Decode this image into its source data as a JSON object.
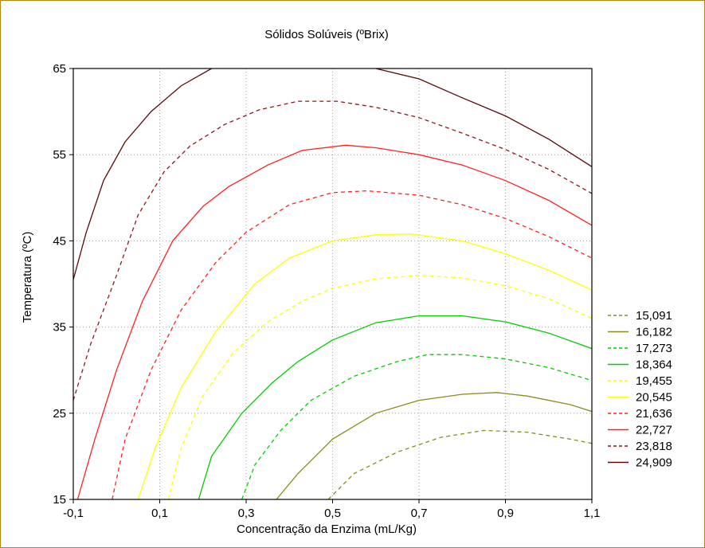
{
  "chart_data": {
    "type": "contour",
    "title": "Sólidos Solúveis (ºBrix)",
    "xlabel": "Concentração da Enzima (mL/Kg)",
    "ylabel": "Temperatura (ºC)",
    "xlim": [
      -0.1,
      1.1
    ],
    "ylim": [
      15,
      65
    ],
    "x_ticks": [
      -0.1,
      0.1,
      0.3,
      0.5,
      0.7,
      0.9,
      1.1
    ],
    "x_tick_labels": [
      "-0,1",
      "0,1",
      "0,3",
      "0,5",
      "0,7",
      "0,9",
      "1,1"
    ],
    "y_ticks": [
      15,
      25,
      35,
      45,
      55,
      65
    ],
    "y_tick_labels": [
      "15",
      "25",
      "35",
      "45",
      "55",
      "65"
    ],
    "grid": true,
    "legend_position": "right",
    "levels": [
      {
        "label": "15,091",
        "color": "#8b8b1e",
        "dashed": true,
        "points": [
          [
            0.49,
            15
          ],
          [
            0.55,
            18
          ],
          [
            0.65,
            20.5
          ],
          [
            0.75,
            22.2
          ],
          [
            0.85,
            23
          ],
          [
            0.95,
            22.8
          ],
          [
            1.05,
            22
          ],
          [
            1.1,
            21.5
          ]
        ]
      },
      {
        "label": "16,182",
        "color": "#8b8b1e",
        "dashed": false,
        "points": [
          [
            0.37,
            15
          ],
          [
            0.42,
            18
          ],
          [
            0.5,
            22
          ],
          [
            0.6,
            25
          ],
          [
            0.7,
            26.5
          ],
          [
            0.8,
            27.2
          ],
          [
            0.88,
            27.4
          ],
          [
            0.95,
            27
          ],
          [
            1.05,
            26
          ],
          [
            1.1,
            25.2
          ]
        ]
      },
      {
        "label": "17,273",
        "color": "#00cc00",
        "dashed": true,
        "points": [
          [
            0.29,
            15
          ],
          [
            0.32,
            19
          ],
          [
            0.38,
            23
          ],
          [
            0.45,
            26.5
          ],
          [
            0.55,
            29.3
          ],
          [
            0.65,
            31
          ],
          [
            0.72,
            31.8
          ],
          [
            0.8,
            31.8
          ],
          [
            0.9,
            31.3
          ],
          [
            1.0,
            30.3
          ],
          [
            1.1,
            28.8
          ]
        ]
      },
      {
        "label": "18,364",
        "color": "#00cc00",
        "dashed": false,
        "points": [
          [
            0.19,
            15
          ],
          [
            0.22,
            20
          ],
          [
            0.29,
            25
          ],
          [
            0.36,
            28.5
          ],
          [
            0.42,
            31
          ],
          [
            0.5,
            33.5
          ],
          [
            0.6,
            35.5
          ],
          [
            0.7,
            36.3
          ],
          [
            0.8,
            36.3
          ],
          [
            0.9,
            35.6
          ],
          [
            1.0,
            34.3
          ],
          [
            1.1,
            32.5
          ]
        ]
      },
      {
        "label": "19,455",
        "color": "#ffff00",
        "dashed": true,
        "points": [
          [
            0.12,
            15
          ],
          [
            0.15,
            21
          ],
          [
            0.2,
            27
          ],
          [
            0.27,
            32
          ],
          [
            0.35,
            35.6
          ],
          [
            0.43,
            38
          ],
          [
            0.5,
            39.5
          ],
          [
            0.6,
            40.6
          ],
          [
            0.7,
            41
          ],
          [
            0.8,
            40.7
          ],
          [
            0.9,
            39.8
          ],
          [
            1.0,
            38.3
          ],
          [
            1.1,
            36
          ]
        ]
      },
      {
        "label": "20,545",
        "color": "#ffff00",
        "dashed": false,
        "points": [
          [
            0.05,
            15
          ],
          [
            0.09,
            21
          ],
          [
            0.15,
            28
          ],
          [
            0.23,
            34.5
          ],
          [
            0.32,
            40
          ],
          [
            0.4,
            43
          ],
          [
            0.5,
            45
          ],
          [
            0.6,
            45.7
          ],
          [
            0.68,
            45.8
          ],
          [
            0.8,
            45
          ],
          [
            0.9,
            43.5
          ],
          [
            1.0,
            41.6
          ],
          [
            1.1,
            39.3
          ]
        ]
      },
      {
        "label": "21,636",
        "color": "#ff2020",
        "dashed": true,
        "points": [
          [
            -0.01,
            15
          ],
          [
            0.02,
            22
          ],
          [
            0.08,
            30
          ],
          [
            0.15,
            37
          ],
          [
            0.23,
            42.5
          ],
          [
            0.3,
            46
          ],
          [
            0.4,
            49.2
          ],
          [
            0.5,
            50.6
          ],
          [
            0.58,
            50.8
          ],
          [
            0.7,
            50.3
          ],
          [
            0.8,
            49.2
          ],
          [
            0.9,
            47.6
          ],
          [
            1.0,
            45.5
          ],
          [
            1.1,
            43
          ]
        ]
      },
      {
        "label": "22,727",
        "color": "#ff2020",
        "dashed": false,
        "points": [
          [
            -0.09,
            15
          ],
          [
            -0.05,
            22
          ],
          [
            0,
            30
          ],
          [
            0.06,
            38
          ],
          [
            0.13,
            45
          ],
          [
            0.2,
            49
          ],
          [
            0.26,
            51.3
          ],
          [
            0.35,
            53.8
          ],
          [
            0.43,
            55.5
          ],
          [
            0.53,
            56.1
          ],
          [
            0.6,
            55.8
          ],
          [
            0.7,
            55
          ],
          [
            0.8,
            53.8
          ],
          [
            0.9,
            52
          ],
          [
            1.0,
            49.7
          ],
          [
            1.1,
            46.8
          ]
        ]
      },
      {
        "label": "23,818",
        "color": "#8b1a1a",
        "dashed": true,
        "points": [
          [
            -0.1,
            26.5
          ],
          [
            -0.06,
            33
          ],
          [
            0,
            41
          ],
          [
            0.05,
            48
          ],
          [
            0.11,
            53
          ],
          [
            0.17,
            56
          ],
          [
            0.25,
            58.5
          ],
          [
            0.33,
            60.2
          ],
          [
            0.42,
            61.2
          ],
          [
            0.51,
            61.2
          ],
          [
            0.6,
            60.5
          ],
          [
            0.7,
            59.3
          ],
          [
            0.8,
            57.5
          ],
          [
            0.9,
            55.6
          ],
          [
            1.0,
            53.3
          ],
          [
            1.1,
            50.5
          ]
        ]
      },
      {
        "label": "24,909",
        "color": "#5a0a0a",
        "dashed": false,
        "points": [
          [
            -0.1,
            40.5
          ],
          [
            -0.07,
            46
          ],
          [
            -0.03,
            52
          ],
          [
            0.02,
            56.5
          ],
          [
            0.08,
            60
          ],
          [
            0.15,
            63
          ],
          [
            0.22,
            65
          ]
        ],
        "points_2": [
          [
            0.6,
            65
          ],
          [
            0.7,
            63.8
          ],
          [
            0.8,
            61.6
          ],
          [
            0.9,
            59.5
          ],
          [
            1.0,
            56.8
          ],
          [
            1.1,
            53.6
          ]
        ]
      }
    ]
  }
}
